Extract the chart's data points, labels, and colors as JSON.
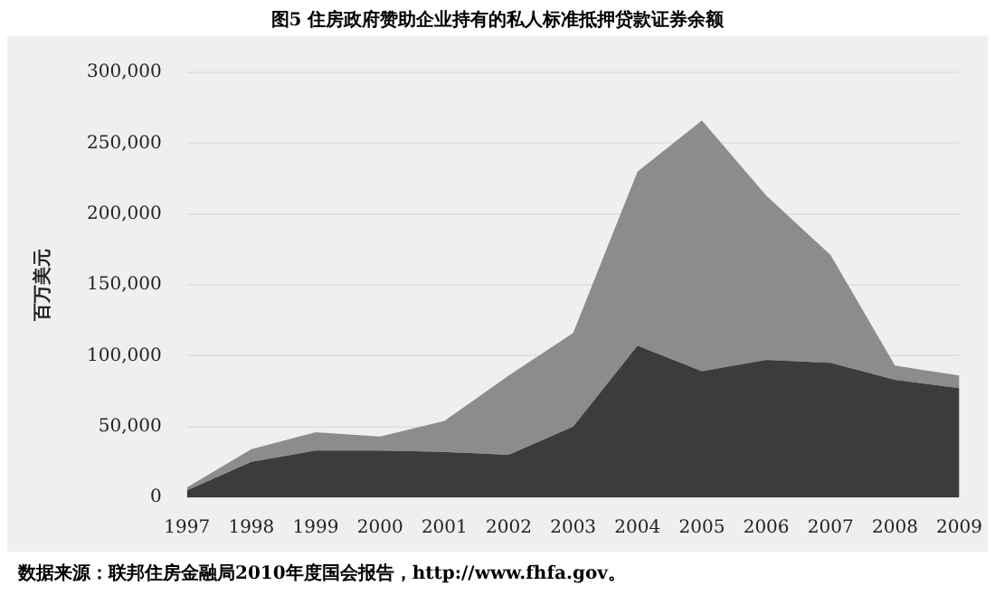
{
  "chart_data": {
    "type": "area",
    "title": "图5 住房政府赞助企业持有的私人标准抵押贷款证券余额",
    "ylabel": "百万美元",
    "annotations": [
      "数据来源：联邦住房金融局2010年度国会报告，http://www.fhfa.gov。"
    ],
    "categories": [
      "1997",
      "1998",
      "1999",
      "2000",
      "2001",
      "2002",
      "2003",
      "2004",
      "2005",
      "2006",
      "2007",
      "2008",
      "2009"
    ],
    "stacked": true,
    "series": [
      {
        "color": "#3c3c3c",
        "values": [
          5000,
          25000,
          33000,
          33000,
          32000,
          30000,
          50000,
          107000,
          89000,
          97000,
          95000,
          83000,
          77000
        ]
      },
      {
        "color": "#8c8c8c",
        "values": [
          2000,
          9000,
          13000,
          10000,
          22000,
          56000,
          66000,
          123000,
          177000,
          116000,
          76000,
          10000,
          9000
        ]
      }
    ],
    "ylim": [
      0,
      300000
    ],
    "yticks": [
      {
        "value": 0,
        "label": "0"
      },
      {
        "value": 50000,
        "label": "50,000"
      },
      {
        "value": 100000,
        "label": "100,000"
      },
      {
        "value": 150000,
        "label": "150,000"
      },
      {
        "value": 200000,
        "label": "200,000"
      },
      {
        "value": 250000,
        "label": "250,000"
      },
      {
        "value": 300000,
        "label": "300,000"
      }
    ],
    "grid": "y",
    "legend": false
  }
}
